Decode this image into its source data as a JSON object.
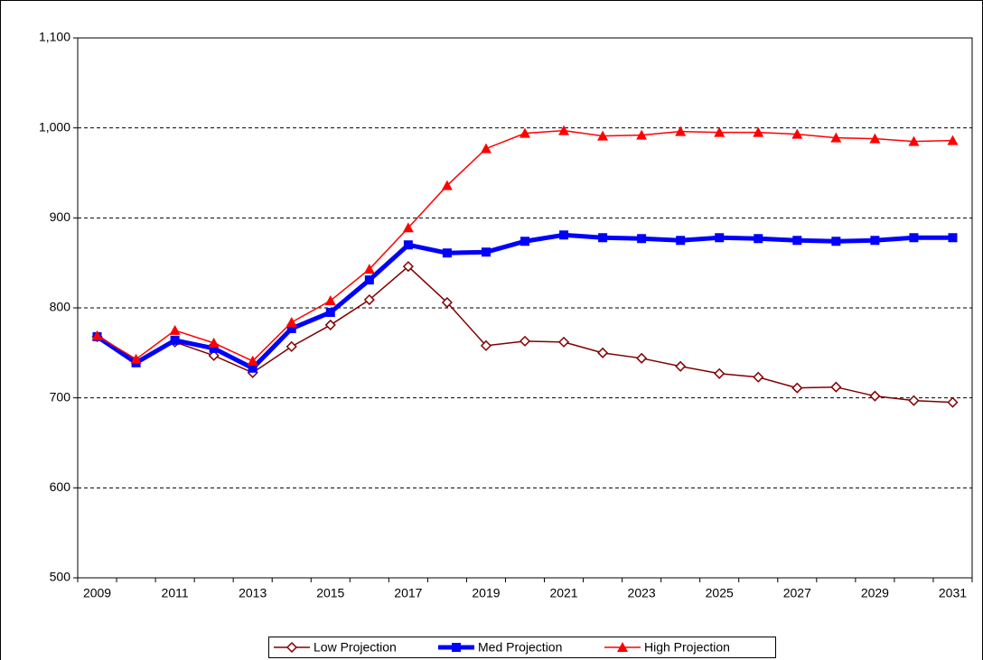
{
  "chart_data": {
    "type": "line",
    "categories": [
      "2009",
      null,
      "2011",
      null,
      "2013",
      null,
      "2015",
      null,
      "2017",
      null,
      "2019",
      null,
      "2021",
      null,
      "2023",
      null,
      "2025",
      null,
      "2027",
      null,
      "2029",
      null,
      "2031"
    ],
    "series": [
      {
        "name": "Low Projection",
        "color": "#800000",
        "marker": "diamond",
        "values": [
          768,
          741,
          762,
          747,
          728,
          757,
          781,
          809,
          846,
          806,
          758,
          763,
          762,
          750,
          744,
          735,
          727,
          723,
          711,
          712,
          702,
          697,
          695
        ]
      },
      {
        "name": "Med Projection",
        "color": "#0000ff",
        "marker": "square",
        "values": [
          768,
          739,
          764,
          755,
          733,
          777,
          795,
          831,
          870,
          861,
          862,
          874,
          881,
          878,
          877,
          875,
          878,
          877,
          875,
          874,
          875,
          878,
          878
        ]
      },
      {
        "name": "High Projection",
        "color": "#ff0000",
        "marker": "triangle",
        "values": [
          769,
          743,
          775,
          761,
          741,
          784,
          808,
          843,
          889,
          936,
          977,
          994,
          997,
          991,
          992,
          996,
          995,
          995,
          993,
          989,
          988,
          985,
          986
        ]
      }
    ],
    "ylim": [
      500,
      1100
    ],
    "yticks": [
      500,
      600,
      700,
      800,
      900,
      {
        "value": 1000,
        "label": "1,000"
      },
      {
        "value": 1100,
        "label": "1,100"
      }
    ],
    "grid": true,
    "legend": "bottom"
  }
}
